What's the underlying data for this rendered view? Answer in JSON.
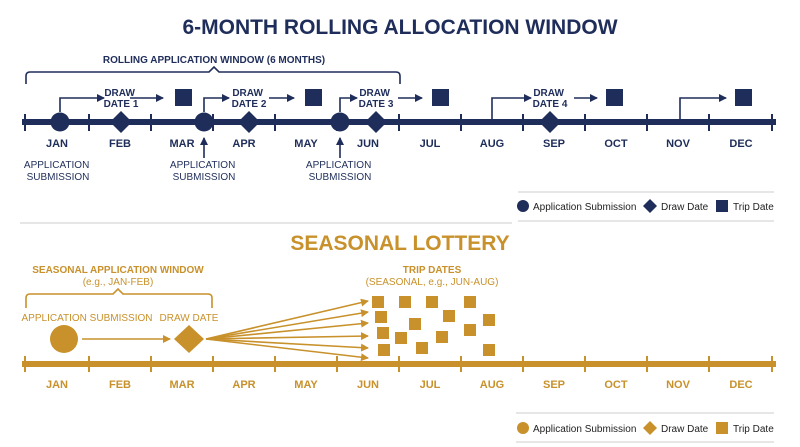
{
  "colors": {
    "navy": "#1f2d5a",
    "gold": "#c8912b",
    "divider": "#cccccc"
  },
  "rolling": {
    "title": "6-MONTH ROLLING ALLOCATION WINDOW",
    "window_label": "ROLLING APPLICATION WINDOW (6 MONTHS)",
    "months": [
      "JAN",
      "FEB",
      "MAR",
      "APR",
      "MAY",
      "JUN",
      "JUL",
      "AUG",
      "SEP",
      "OCT",
      "NOV",
      "DEC"
    ],
    "draws": [
      {
        "label_line1": "DRAW",
        "label_line2": "DATE 1"
      },
      {
        "label_line1": "DRAW",
        "label_line2": "DATE 2"
      },
      {
        "label_line1": "DRAW",
        "label_line2": "DATE 3"
      },
      {
        "label_line1": "DRAW",
        "label_line2": "DATE 4"
      }
    ],
    "submission_line1": "APPLICATION",
    "submission_line2": "SUBMISSION",
    "legend": {
      "submission": "Application Submission",
      "draw": "Draw Date",
      "trip": "Trip Date"
    }
  },
  "seasonal": {
    "title": "SEASONAL LOTTERY",
    "window_label": "SEASONAL APPLICATION WINDOW",
    "window_sub": "(e.g., JAN-FEB)",
    "trip_label": "TRIP DATES",
    "trip_sub": "(SEASONAL, e.g., JUN-AUG)",
    "submission_label": "APPLICATION SUBMISSION",
    "draw_label": "DRAW DATE",
    "months": [
      "JAN",
      "FEB",
      "MAR",
      "APR",
      "MAY",
      "JUN",
      "JUL",
      "AUG",
      "SEP",
      "OCT",
      "NOV",
      "DEC"
    ],
    "legend": {
      "submission": "Application Submission",
      "draw": "Draw Date",
      "trip": "Trip Date"
    }
  }
}
